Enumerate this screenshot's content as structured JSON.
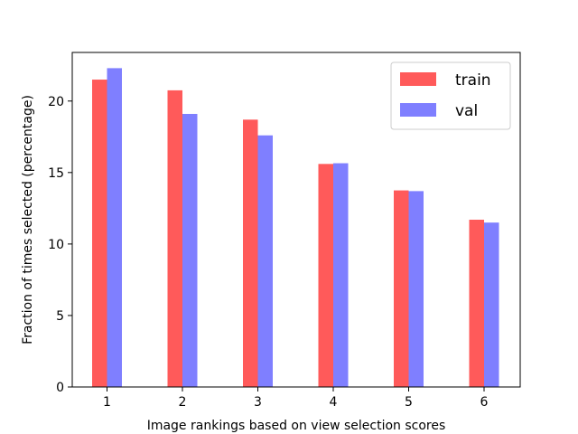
{
  "chart_data": {
    "type": "bar",
    "categories": [
      "1",
      "2",
      "3",
      "4",
      "5",
      "6"
    ],
    "series": [
      {
        "name": "train",
        "values": [
          21.5,
          20.75,
          18.7,
          15.6,
          13.75,
          11.7
        ],
        "color": "#ff5a5a"
      },
      {
        "name": "val",
        "values": [
          22.3,
          19.1,
          17.6,
          15.65,
          13.7,
          11.5
        ],
        "color": "#7f7fff"
      }
    ],
    "title": "",
    "xlabel": "Image rankings based on view selection scores",
    "ylabel": "Fraction of times selected (percentage)",
    "ylim": [
      0,
      23.4
    ],
    "yticks": [
      0,
      5,
      10,
      15,
      20
    ],
    "grid": false,
    "legend_position": "top-right"
  }
}
